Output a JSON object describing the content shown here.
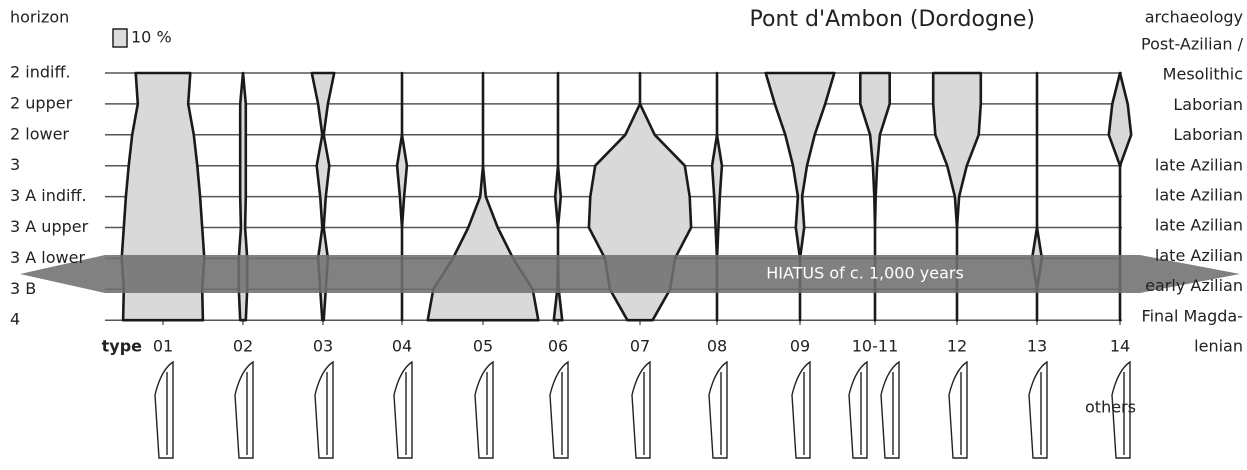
{
  "title": "Pont d'Ambon (Dordogne)",
  "left_heading": "horizon",
  "right_heading": "archaeology",
  "scale": {
    "value": 10,
    "label": "10 %"
  },
  "horizons": [
    "2 indiff.",
    "2 upper",
    "2 lower",
    "3",
    "3 A indiff.",
    "3 A upper",
    "3 A lower",
    "3 B",
    "4"
  ],
  "archaeology": [
    "Post-Azilian /",
    "Mesolithic",
    "Laborian",
    "Laborian",
    "late Azilian",
    "late Azilian",
    "late Azilian",
    "late Azilian",
    "early Azilian",
    "Final Magda-",
    "lenian"
  ],
  "type_heading": "type",
  "types": [
    {
      "name": "01",
      "values": [
        39,
        36,
        44,
        49,
        53,
        56,
        59,
        56,
        57
      ]
    },
    {
      "name": "02",
      "values": [
        0,
        4,
        4,
        4,
        4,
        3,
        6,
        6,
        4
      ]
    },
    {
      "name": "03",
      "values": [
        16,
        7,
        1,
        9,
        4,
        1,
        7,
        4,
        1
      ]
    },
    {
      "name": "04",
      "values": [
        0,
        0,
        0,
        7,
        3,
        0,
        0,
        0,
        0
      ]
    },
    {
      "name": "05",
      "values": [
        0,
        0,
        0,
        0,
        4,
        21,
        43,
        71,
        79
      ]
    },
    {
      "name": "06",
      "values": [
        0,
        0,
        0,
        0,
        4,
        0,
        0,
        1,
        6
      ]
    },
    {
      "name": "07",
      "values": [
        0,
        0,
        21,
        64,
        71,
        73,
        50,
        43,
        18
      ]
    },
    {
      "name": "08",
      "values": [
        0,
        0,
        0,
        7,
        4,
        2,
        0,
        0,
        0
      ]
    },
    {
      "name": "09",
      "values": [
        49,
        36,
        21,
        10,
        3,
        6,
        0,
        0,
        0
      ]
    },
    {
      "name": "10-11",
      "values": [
        21,
        21,
        7,
        3,
        1,
        0,
        0,
        0,
        0
      ]
    },
    {
      "name": "12",
      "values": [
        34,
        34,
        31,
        14,
        3,
        0,
        0,
        0,
        0
      ]
    },
    {
      "name": "13",
      "values": [
        0,
        0,
        0,
        0,
        0,
        0,
        7,
        0,
        0
      ]
    },
    {
      "name": "14",
      "values": [
        0,
        11,
        16,
        0,
        0,
        0,
        0,
        0,
        0
      ]
    }
  ],
  "hiatus": "HIATUS of c. 1,000 years",
  "others": "others"
}
